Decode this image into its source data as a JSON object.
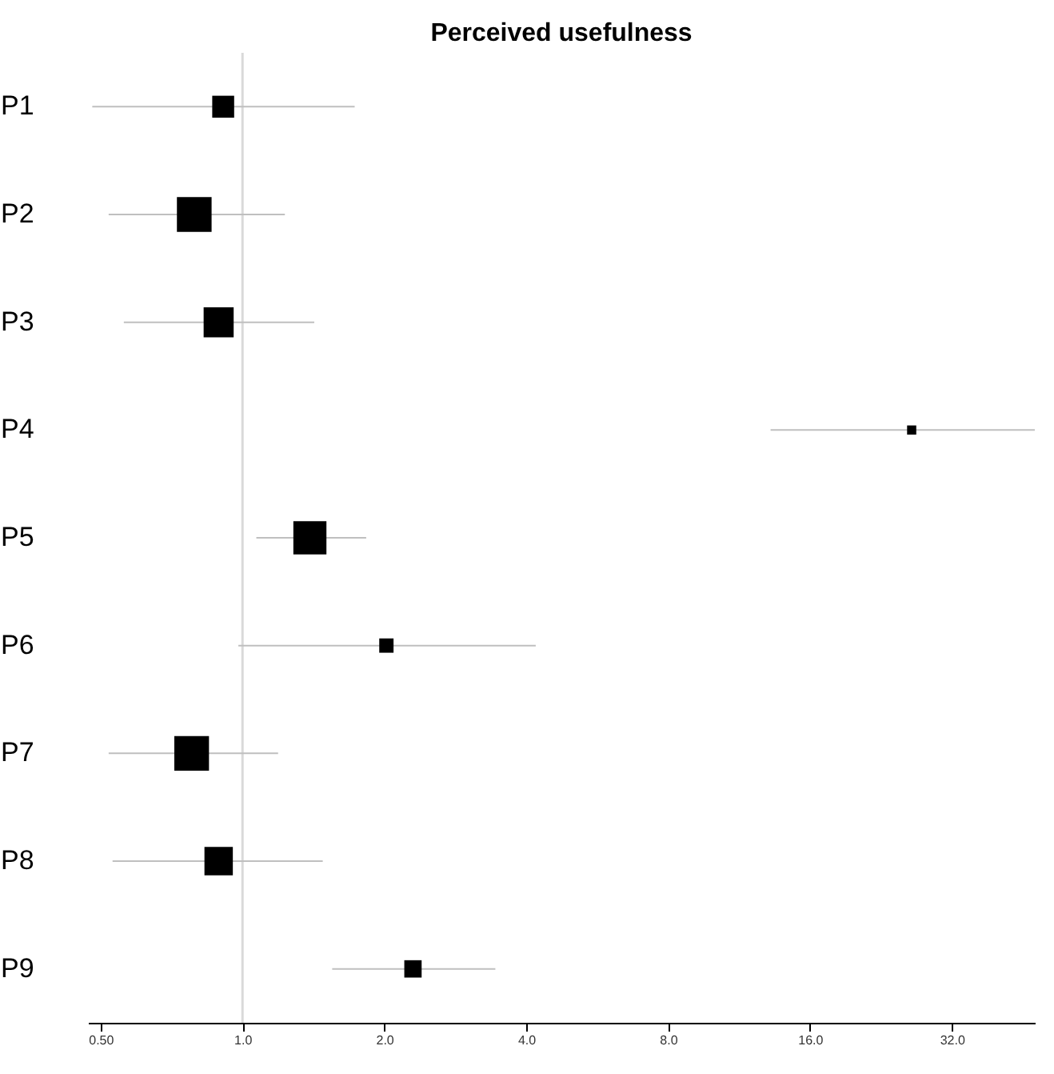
{
  "chart_data": {
    "type": "scatter",
    "title": "Perceived usefulness",
    "categories": [
      "P1",
      "P2",
      "P3",
      "P4",
      "P5",
      "P6",
      "P7",
      "P8",
      "P9"
    ],
    "values": [
      0.91,
      0.79,
      0.89,
      26.3,
      1.39,
      2.02,
      0.78,
      0.89,
      2.3
    ],
    "errors": [
      [
        0.48,
        1.73
      ],
      [
        0.52,
        1.23
      ],
      [
        0.56,
        1.42
      ],
      [
        13.2,
        48
      ],
      [
        1.07,
        1.83
      ],
      [
        0.98,
        4.19
      ],
      [
        0.52,
        1.19
      ],
      [
        0.53,
        1.48
      ],
      [
        1.55,
        3.44
      ]
    ],
    "sizes": [
      0.4,
      1,
      0.75,
      0.07,
      0.91,
      0.17,
      1,
      0.67,
      0.25
    ],
    "color": "#000000",
    "marker": "square",
    "orientation": "horizontal",
    "log": "x",
    "xlim": [
      0.47,
      48
    ],
    "xticks": [
      {
        "value": 0.5,
        "label": "0.50"
      },
      {
        "value": 1,
        "label": "1.0"
      },
      {
        "value": 2,
        "label": "2.0"
      },
      {
        "value": 4,
        "label": "4.0"
      },
      {
        "value": 8,
        "label": "8.0"
      },
      {
        "value": 16,
        "label": "16.0"
      },
      {
        "value": 32,
        "label": "32.0"
      }
    ],
    "ref_lines": [
      {
        "axis": "x",
        "value": 1,
        "color": "#d9d9d9"
      }
    ],
    "grid": false
  }
}
